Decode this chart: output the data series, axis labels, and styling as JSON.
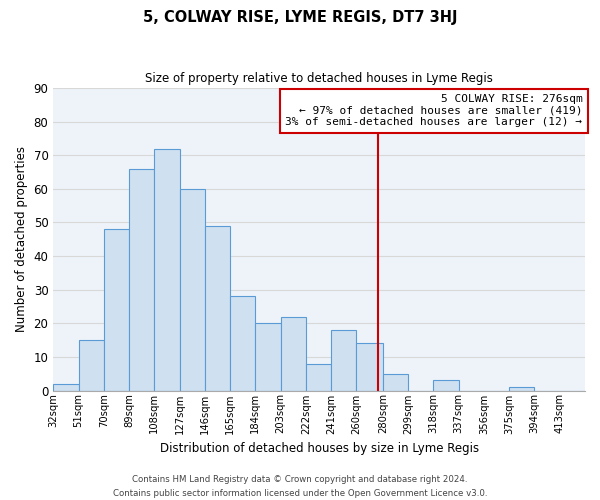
{
  "title": "5, COLWAY RISE, LYME REGIS, DT7 3HJ",
  "subtitle": "Size of property relative to detached houses in Lyme Regis",
  "xlabel": "Distribution of detached houses by size in Lyme Regis",
  "ylabel": "Number of detached properties",
  "bin_labels": [
    "32sqm",
    "51sqm",
    "70sqm",
    "89sqm",
    "108sqm",
    "127sqm",
    "146sqm",
    "165sqm",
    "184sqm",
    "203sqm",
    "222sqm",
    "241sqm",
    "260sqm",
    "280sqm",
    "299sqm",
    "318sqm",
    "337sqm",
    "356sqm",
    "375sqm",
    "394sqm",
    "413sqm"
  ],
  "bar_heights": [
    2,
    15,
    48,
    66,
    72,
    60,
    49,
    28,
    20,
    22,
    8,
    18,
    14,
    5,
    0,
    3,
    0,
    0,
    1,
    0,
    0
  ],
  "bar_color": "#cfe0f1",
  "bar_edge_color": "#5b9bd5",
  "vline_x": 276,
  "vline_color": "#cc0000",
  "ylim": [
    0,
    90
  ],
  "yticks": [
    0,
    10,
    20,
    30,
    40,
    50,
    60,
    70,
    80,
    90
  ],
  "annotation_title": "5 COLWAY RISE: 276sqm",
  "annotation_line1": "← 97% of detached houses are smaller (419)",
  "annotation_line2": "3% of semi-detached houses are larger (12) →",
  "footer_line1": "Contains HM Land Registry data © Crown copyright and database right 2024.",
  "footer_line2": "Contains public sector information licensed under the Open Government Licence v3.0.",
  "bin_edges": [
    32,
    51,
    70,
    89,
    108,
    127,
    146,
    165,
    184,
    203,
    222,
    241,
    260,
    280,
    299,
    318,
    337,
    356,
    375,
    394,
    413,
    432
  ],
  "grid_color": "#d8d8d8",
  "background_color": "#eef3fa"
}
